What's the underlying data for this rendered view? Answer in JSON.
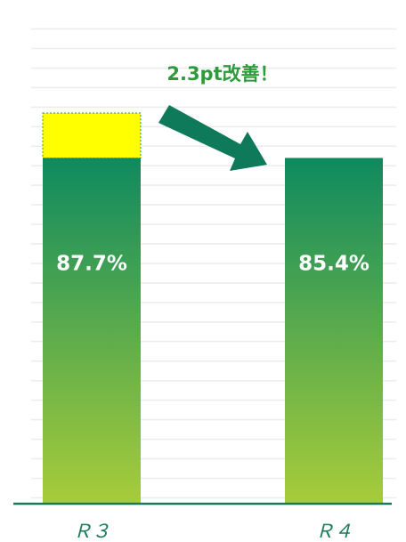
{
  "chart_data": {
    "type": "bar",
    "categories": [
      "Ｒ３",
      "Ｒ４"
    ],
    "values": [
      87.7,
      85.4
    ],
    "value_labels": [
      "87.7%",
      "85.4%"
    ],
    "color": "#0e8a5f",
    "color_bottom": "#a8cc3a",
    "highlight_color": "#ffff00",
    "annotation": "2.3pt改善！",
    "ylim": [
      67.7,
      92.8
    ],
    "yticks": [
      68,
      69,
      70,
      71,
      72,
      73,
      74,
      75,
      76,
      77,
      78,
      79,
      80,
      81,
      82,
      83,
      84,
      85,
      86,
      87,
      88,
      89,
      90,
      91,
      92
    ],
    "grid": true
  }
}
